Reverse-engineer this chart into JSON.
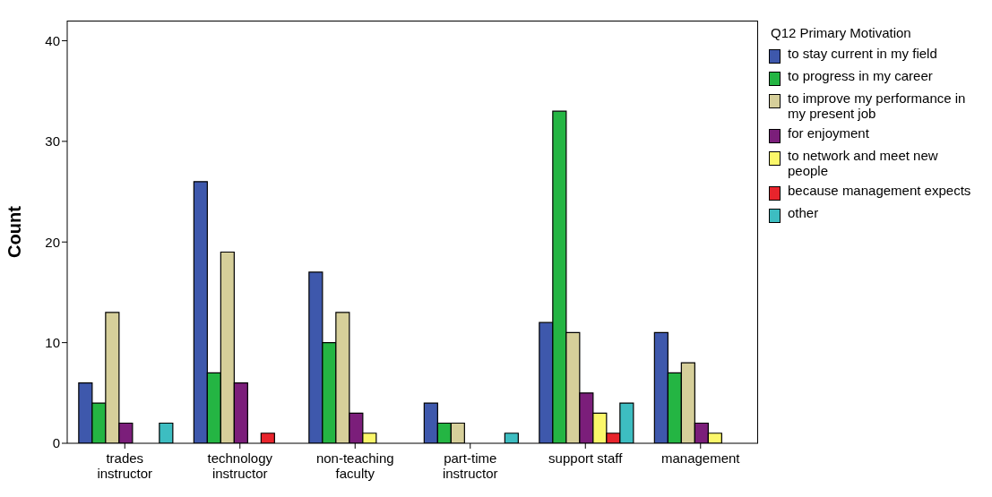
{
  "chart_data": {
    "type": "bar",
    "ylabel": "Count",
    "legend_title": "Q12 Primary Motivation",
    "legend": "right",
    "categories": [
      "trades instructor",
      "technology instructor",
      "non-teaching faculty",
      "part-time instructor",
      "support staff",
      "management"
    ],
    "ylim": [
      0,
      42
    ],
    "yticks": [
      0,
      10,
      20,
      30,
      40
    ],
    "series": [
      {
        "name": "to stay current in my field",
        "color": "#3e58ac",
        "values": [
          6,
          26,
          17,
          4,
          12,
          11
        ]
      },
      {
        "name": "to progress in my career",
        "color": "#24b543",
        "values": [
          4,
          7,
          10,
          2,
          33,
          7
        ]
      },
      {
        "name": "to improve my performance in my present job",
        "color": "#d6cf9a",
        "values": [
          13,
          19,
          13,
          2,
          11,
          8
        ]
      },
      {
        "name": "for enjoyment",
        "color": "#7b1e7a",
        "values": [
          2,
          6,
          3,
          0,
          5,
          2
        ]
      },
      {
        "name": "to network and meet new people",
        "color": "#fbf76a",
        "values": [
          0,
          0,
          1,
          0,
          3,
          1
        ]
      },
      {
        "name": "because management expects",
        "color": "#e8242c",
        "values": [
          0,
          1,
          0,
          0,
          1,
          0
        ]
      },
      {
        "name": "other",
        "color": "#3dbdc1",
        "values": [
          2,
          0,
          0,
          1,
          4,
          0
        ]
      }
    ]
  }
}
